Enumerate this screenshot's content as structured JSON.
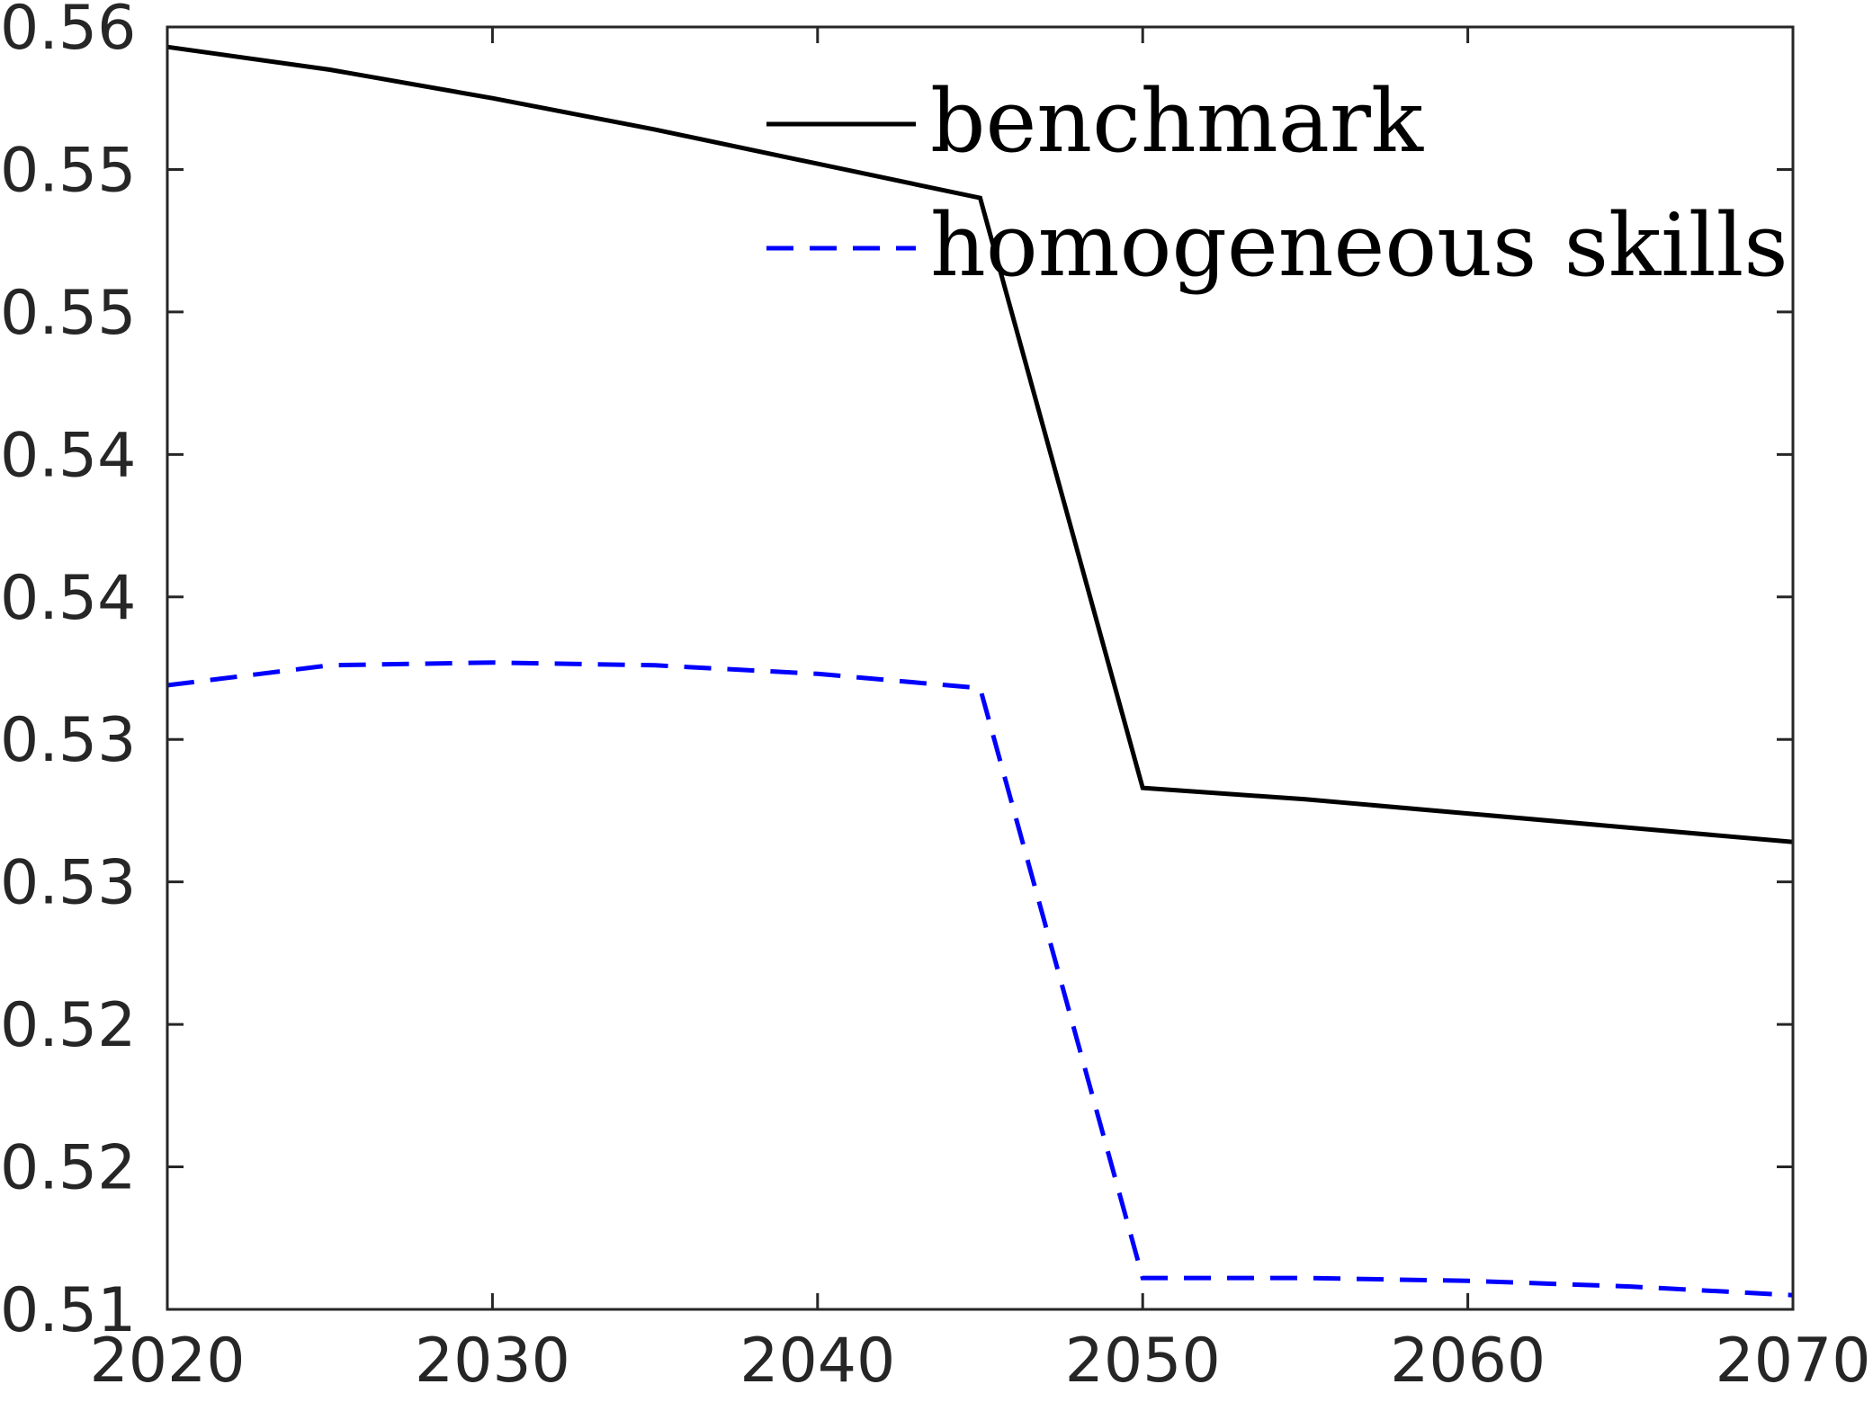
{
  "chart_data": {
    "type": "line",
    "title": "",
    "xlabel": "",
    "ylabel": "",
    "xlim": [
      2020,
      2070
    ],
    "ylim": [
      0.51,
      0.555
    ],
    "x_ticks": [
      2020,
      2030,
      2040,
      2050,
      2060,
      2070
    ],
    "x_tick_labels": [
      "2020",
      "2030",
      "2040",
      "2050",
      "2060",
      "2070"
    ],
    "y_ticks": [
      0.51,
      0.515,
      0.52,
      0.525,
      0.53,
      0.535,
      0.54,
      0.545,
      0.55,
      0.555
    ],
    "y_tick_labels": [
      "0.51",
      "0.52",
      "0.52",
      "0.53",
      "0.53",
      "0.54",
      "0.54",
      "0.55",
      "0.55",
      "0.56"
    ],
    "grid": false,
    "legend_position": "top-right",
    "x": [
      2020,
      2025,
      2030,
      2035,
      2040,
      2045,
      2050,
      2055,
      2060,
      2065,
      2070
    ],
    "series": [
      {
        "name": "benchmark",
        "color": "#000000",
        "style": "solid",
        "values": [
          0.5543,
          0.5535,
          0.5525,
          0.5514,
          0.5502,
          0.549,
          0.5283,
          0.5279,
          0.5274,
          0.5269,
          0.5264
        ]
      },
      {
        "name": "homogeneous skills",
        "color": "#0000ff",
        "style": "dashed",
        "values": [
          0.5319,
          0.5326,
          0.5327,
          0.5326,
          0.5323,
          0.5318,
          0.5111,
          0.5111,
          0.511,
          0.5108,
          0.5105
        ]
      }
    ]
  }
}
